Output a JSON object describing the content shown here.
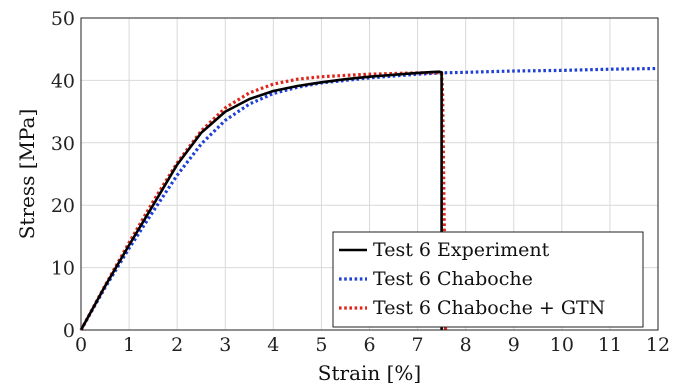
{
  "chart_data": {
    "type": "line",
    "xlabel": "Strain [%]",
    "ylabel": "Stress [MPa]",
    "xlim": [
      0,
      12
    ],
    "ylim": [
      0,
      50
    ],
    "xticks": [
      0,
      1,
      2,
      3,
      4,
      5,
      6,
      7,
      8,
      9,
      10,
      11,
      12
    ],
    "yticks": [
      0,
      10,
      20,
      30,
      40,
      50
    ],
    "grid": true,
    "legend_position": "bottom-right",
    "series": [
      {
        "name": "Test 6 Experiment",
        "color": "#000000",
        "style": "solid",
        "x": [
          0,
          0.5,
          1.0,
          1.5,
          2.0,
          2.5,
          3.0,
          3.5,
          4.0,
          4.5,
          5.0,
          5.5,
          6.0,
          6.5,
          7.0,
          7.3,
          7.45,
          7.5,
          7.5
        ],
        "y": [
          0,
          7.0,
          13.6,
          20.0,
          26.5,
          31.6,
          35.0,
          37.0,
          38.3,
          39.1,
          39.7,
          40.2,
          40.6,
          40.9,
          41.2,
          41.35,
          41.4,
          41.3,
          0
        ]
      },
      {
        "name": "Test 6 Chaboche",
        "color": "#1f3fd9",
        "style": "dotted",
        "x": [
          0,
          0.5,
          1.0,
          1.5,
          2.0,
          2.5,
          3.0,
          3.5,
          4.0,
          4.5,
          5.0,
          6.0,
          7.0,
          7.5,
          8.0,
          9.0,
          10.0,
          11.0,
          12.0
        ],
        "y": [
          0,
          6.8,
          13.1,
          19.0,
          24.8,
          29.8,
          33.6,
          36.2,
          37.9,
          38.9,
          39.6,
          40.4,
          41.0,
          41.2,
          41.3,
          41.5,
          41.6,
          41.8,
          41.9
        ]
      },
      {
        "name": "Test 6 Chaboche + GTN",
        "color": "#e0251b",
        "style": "dotted",
        "x": [
          0,
          0.5,
          1.0,
          1.5,
          2.0,
          2.5,
          3.0,
          3.5,
          4.0,
          4.5,
          5.0,
          5.5,
          6.0,
          6.5,
          7.0,
          7.4,
          7.5,
          7.52,
          7.55,
          7.58
        ],
        "y": [
          0,
          7.1,
          14.0,
          20.6,
          26.8,
          31.9,
          35.6,
          38.0,
          39.4,
          40.2,
          40.6,
          40.8,
          41.0,
          41.1,
          41.2,
          41.25,
          41.2,
          38.0,
          20.0,
          0
        ]
      }
    ]
  }
}
